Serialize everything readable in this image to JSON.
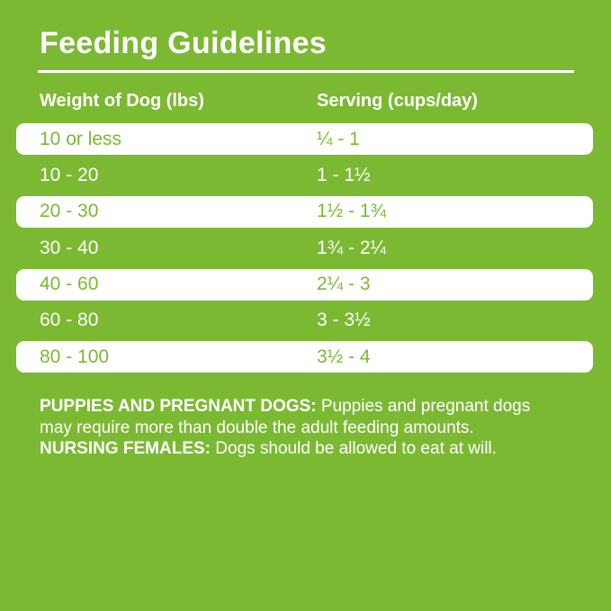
{
  "page": {
    "title": "Feeding Guidelines"
  },
  "table": {
    "columns": [
      {
        "label": "Weight of Dog (lbs)"
      },
      {
        "label": "Serving (cups/day)"
      }
    ],
    "rows": [
      {
        "weight": "10 or less",
        "serving": "¼ - 1"
      },
      {
        "weight": "10 - 20",
        "serving": "1 - 1½"
      },
      {
        "weight": "20 - 30",
        "serving": "1½ - 1¾"
      },
      {
        "weight": "30 - 40",
        "serving": "1¾ - 2¼"
      },
      {
        "weight": "40 - 60",
        "serving": "2¼ - 3"
      },
      {
        "weight": "60 - 80",
        "serving": "3 - 3½"
      },
      {
        "weight": "80 - 100",
        "serving": "3½ - 4"
      }
    ]
  },
  "notes": {
    "puppies_label": "PUPPIES AND PREGNANT DOGS:",
    "puppies_text": "Puppies and pregnant dogs may require more than double the adult feeding amounts.",
    "nursing_label": "NURSING FEMALES:",
    "nursing_text": "Dogs should be allowed to eat at will."
  },
  "colors": {
    "background_green": "#7BB933",
    "row_white": "#FFFFFF",
    "text_white": "#FFFFFF",
    "text_green": "#7BB933"
  },
  "chart_data": {
    "type": "table",
    "title": "Feeding Guidelines",
    "columns": [
      "Weight of Dog (lbs)",
      "Serving (cups/day)"
    ],
    "rows": [
      [
        "10 or less",
        "¼ - 1"
      ],
      [
        "10 - 20",
        "1 - 1½"
      ],
      [
        "20 - 30",
        "1½ - 1¾"
      ],
      [
        "30 - 40",
        "1¾ - 2¼"
      ],
      [
        "40 - 60",
        "2¼ - 3"
      ],
      [
        "60 - 80",
        "3 - 3½"
      ],
      [
        "80 - 100",
        "3½ - 4"
      ]
    ],
    "notes": "PUPPIES AND PREGNANT DOGS: Puppies and pregnant dogs may require more than double the adult feeding amounts. NURSING FEMALES: Dogs should be allowed to eat at will."
  }
}
